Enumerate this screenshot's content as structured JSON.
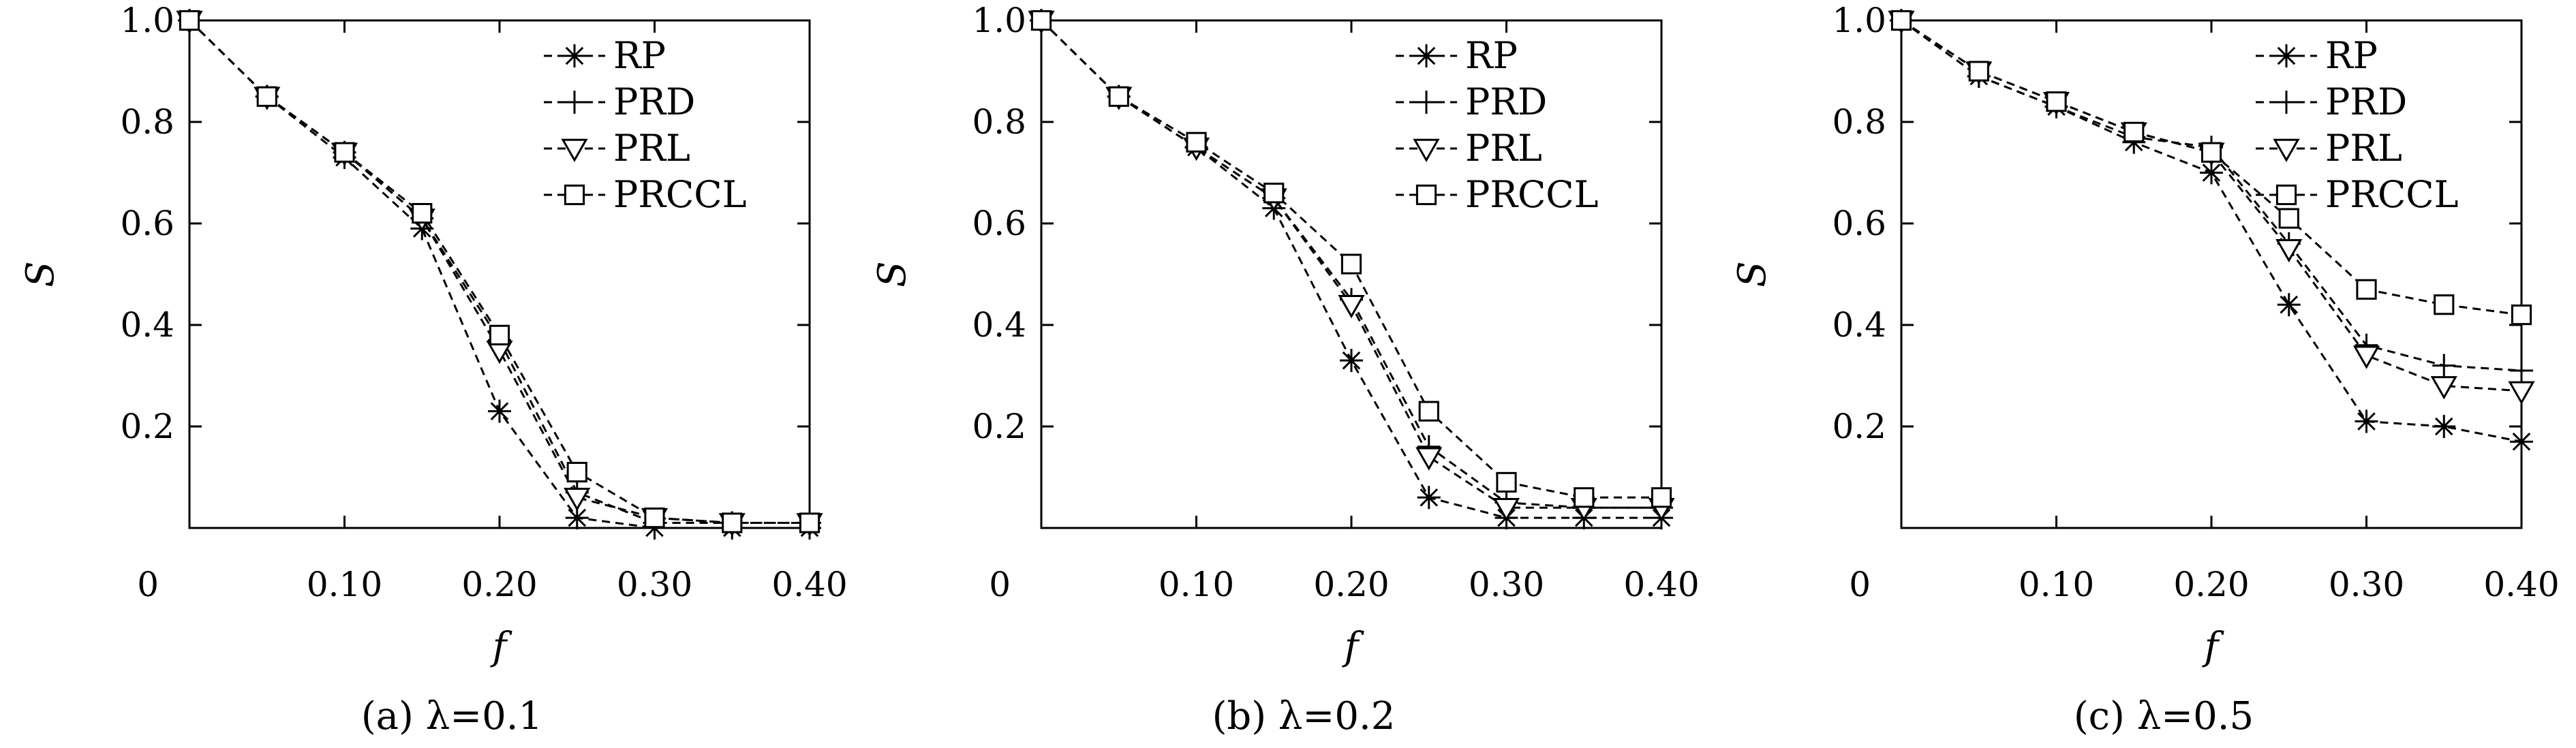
{
  "chart_data": [
    {
      "type": "line",
      "caption": "(a) λ=0.1",
      "xlabel": "f",
      "ylabel": "S",
      "xlim": [
        0,
        0.4
      ],
      "ylim": [
        0,
        1.0
      ],
      "x_ticks": [
        "0",
        "0.10",
        "0.20",
        "0.30",
        "0.40"
      ],
      "y_ticks": [
        "0.2",
        "0.4",
        "0.6",
        "0.8",
        "1.0"
      ],
      "legend": "top-right",
      "x": [
        0,
        0.05,
        0.1,
        0.15,
        0.2,
        0.25,
        0.3,
        0.35,
        0.4
      ],
      "series": [
        {
          "name": "RP",
          "marker": "star",
          "values": [
            1.0,
            0.85,
            0.73,
            0.59,
            0.23,
            0.02,
            0.0,
            0.0,
            0.0
          ]
        },
        {
          "name": "PRD",
          "marker": "plus",
          "values": [
            1.0,
            0.85,
            0.74,
            0.61,
            0.37,
            0.07,
            0.01,
            0.01,
            0.01
          ]
        },
        {
          "name": "PRL",
          "marker": "triangle-down",
          "values": [
            1.0,
            0.85,
            0.74,
            0.61,
            0.35,
            0.06,
            0.02,
            0.01,
            0.01
          ]
        },
        {
          "name": "PRCCL",
          "marker": "square",
          "values": [
            1.0,
            0.85,
            0.74,
            0.62,
            0.38,
            0.11,
            0.02,
            0.01,
            0.01
          ]
        }
      ]
    },
    {
      "type": "line",
      "caption": "(b) λ=0.2",
      "xlabel": "f",
      "ylabel": "S",
      "xlim": [
        0,
        0.4
      ],
      "ylim": [
        0,
        1.0
      ],
      "x_ticks": [
        "0",
        "0.10",
        "0.20",
        "0.30",
        "0.40"
      ],
      "y_ticks": [
        "0.2",
        "0.4",
        "0.6",
        "0.8",
        "1.0"
      ],
      "legend": "top-right",
      "x": [
        0,
        0.05,
        0.1,
        0.15,
        0.2,
        0.25,
        0.3,
        0.35,
        0.4
      ],
      "series": [
        {
          "name": "RP",
          "marker": "star",
          "values": [
            1.0,
            0.85,
            0.75,
            0.63,
            0.33,
            0.06,
            0.02,
            0.02,
            0.02
          ]
        },
        {
          "name": "PRD",
          "marker": "plus",
          "values": [
            1.0,
            0.85,
            0.75,
            0.65,
            0.45,
            0.16,
            0.05,
            0.04,
            0.04
          ]
        },
        {
          "name": "PRL",
          "marker": "triangle-down",
          "values": [
            1.0,
            0.85,
            0.75,
            0.65,
            0.44,
            0.14,
            0.04,
            0.04,
            0.04
          ]
        },
        {
          "name": "PRCCL",
          "marker": "square",
          "values": [
            1.0,
            0.85,
            0.76,
            0.66,
            0.52,
            0.23,
            0.09,
            0.06,
            0.06
          ]
        }
      ]
    },
    {
      "type": "line",
      "caption": "(c) λ=0.5",
      "xlabel": "f",
      "ylabel": "S",
      "xlim": [
        0,
        0.4
      ],
      "ylim": [
        0,
        1.0
      ],
      "x_ticks": [
        "0",
        "0.10",
        "0.20",
        "0.30",
        "0.40"
      ],
      "y_ticks": [
        "0.2",
        "0.4",
        "0.6",
        "0.8",
        "1.0"
      ],
      "legend": "top-right",
      "x": [
        0,
        0.05,
        0.1,
        0.15,
        0.2,
        0.25,
        0.3,
        0.35,
        0.4
      ],
      "series": [
        {
          "name": "RP",
          "marker": "star",
          "values": [
            1.0,
            0.89,
            0.83,
            0.76,
            0.7,
            0.44,
            0.21,
            0.2,
            0.17
          ]
        },
        {
          "name": "PRD",
          "marker": "plus",
          "values": [
            1.0,
            0.89,
            0.83,
            0.77,
            0.75,
            0.56,
            0.36,
            0.32,
            0.31
          ]
        },
        {
          "name": "PRL",
          "marker": "triangle-down",
          "values": [
            1.0,
            0.9,
            0.84,
            0.78,
            0.74,
            0.55,
            0.34,
            0.28,
            0.27
          ]
        },
        {
          "name": "PRCCL",
          "marker": "square",
          "values": [
            1.0,
            0.9,
            0.84,
            0.78,
            0.74,
            0.61,
            0.47,
            0.44,
            0.42
          ]
        }
      ]
    }
  ]
}
